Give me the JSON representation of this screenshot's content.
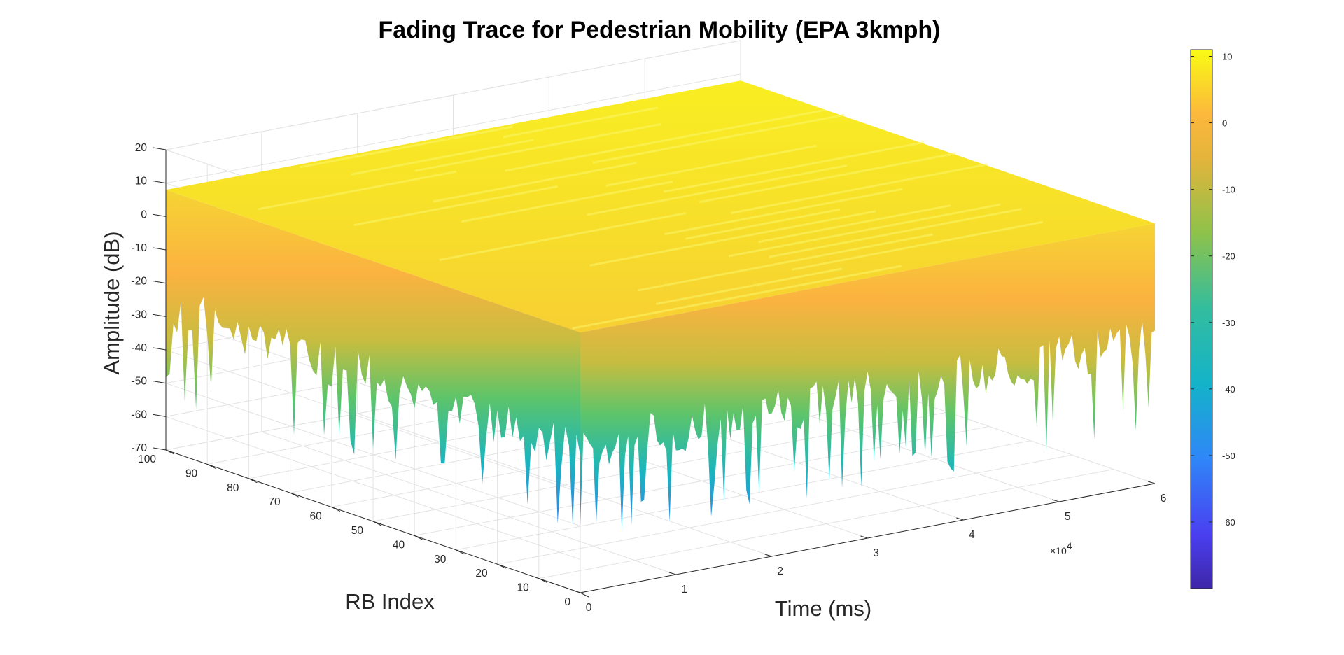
{
  "chart_data": {
    "type": "surface",
    "title": "Fading Trace for Pedestrian Mobility (EPA 3kmph)",
    "xlabel": "Time (ms)",
    "ylabel": "RB Index",
    "zlabel": "Amplitude (dB)",
    "x_exponent_label": "×10",
    "x_exponent_power": "4",
    "xlim": [
      0,
      60000
    ],
    "ylim": [
      0,
      100
    ],
    "zlim": [
      -70,
      20
    ],
    "x_ticks": [
      {
        "v": 0,
        "label": "0"
      },
      {
        "v": 10000,
        "label": "1"
      },
      {
        "v": 20000,
        "label": "2"
      },
      {
        "v": 30000,
        "label": "3"
      },
      {
        "v": 40000,
        "label": "4"
      },
      {
        "v": 50000,
        "label": "5"
      },
      {
        "v": 60000,
        "label": "6"
      }
    ],
    "y_ticks": [
      {
        "v": 0,
        "label": "0"
      },
      {
        "v": 10,
        "label": "10"
      },
      {
        "v": 20,
        "label": "20"
      },
      {
        "v": 30,
        "label": "30"
      },
      {
        "v": 40,
        "label": "40"
      },
      {
        "v": 50,
        "label": "50"
      },
      {
        "v": 60,
        "label": "60"
      },
      {
        "v": 70,
        "label": "70"
      },
      {
        "v": 80,
        "label": "80"
      },
      {
        "v": 90,
        "label": "90"
      },
      {
        "v": 100,
        "label": "100"
      }
    ],
    "z_ticks": [
      {
        "v": 20,
        "label": "20"
      },
      {
        "v": 10,
        "label": "10"
      },
      {
        "v": 0,
        "label": "0"
      },
      {
        "v": -10,
        "label": "-10"
      },
      {
        "v": -20,
        "label": "-20"
      },
      {
        "v": -30,
        "label": "-30"
      },
      {
        "v": -40,
        "label": "-40"
      },
      {
        "v": -50,
        "label": "-50"
      },
      {
        "v": -60,
        "label": "-60"
      },
      {
        "v": -70,
        "label": "-70"
      }
    ],
    "colorbar": {
      "limits": [
        -70,
        11
      ],
      "ticks": [
        {
          "v": 10,
          "label": "10"
        },
        {
          "v": 0,
          "label": "0"
        },
        {
          "v": -10,
          "label": "-10"
        },
        {
          "v": -20,
          "label": "-20"
        },
        {
          "v": -30,
          "label": "-30"
        },
        {
          "v": -40,
          "label": "-40"
        },
        {
          "v": -50,
          "label": "-50"
        },
        {
          "v": -60,
          "label": "-60"
        }
      ],
      "colormap": "parula"
    },
    "grid": true,
    "surface_summary": {
      "typical_peak_db": 8,
      "max_db": 11,
      "min_db": -70,
      "deep_fade_range_db": [
        -55,
        -20
      ]
    }
  },
  "colors": {
    "parula_low": "#3e26a8",
    "parula_mid_blue": "#2f86f8",
    "parula_cyan": "#14b3c9",
    "parula_green": "#56c667",
    "parula_orange": "#fbb83d",
    "parula_high": "#f9fb14"
  }
}
